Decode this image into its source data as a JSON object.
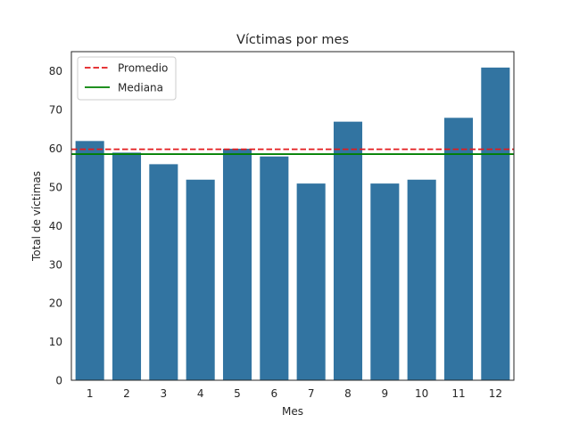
{
  "chart_data": {
    "type": "bar",
    "title": "Víctimas por mes",
    "xlabel": "Mes",
    "ylabel": "Total de víctimas",
    "categories": [
      "1",
      "2",
      "3",
      "4",
      "5",
      "6",
      "7",
      "8",
      "9",
      "10",
      "11",
      "12"
    ],
    "values": [
      62,
      59,
      56,
      52,
      60,
      58,
      51,
      67,
      51,
      52,
      68,
      81
    ],
    "ylim": [
      0,
      85
    ],
    "yticks": [
      0,
      10,
      20,
      30,
      40,
      50,
      60,
      70,
      80
    ],
    "grid": false,
    "bar_color": "#3274a1",
    "reference_lines": [
      {
        "name": "Promedio",
        "value": 59.75,
        "color": "#e31a1c",
        "style": "dashed"
      },
      {
        "name": "Mediana",
        "value": 58.5,
        "color": "#008000",
        "style": "solid"
      }
    ],
    "legend": {
      "placement": "top-left",
      "entries": [
        "Promedio",
        "Mediana"
      ]
    }
  }
}
